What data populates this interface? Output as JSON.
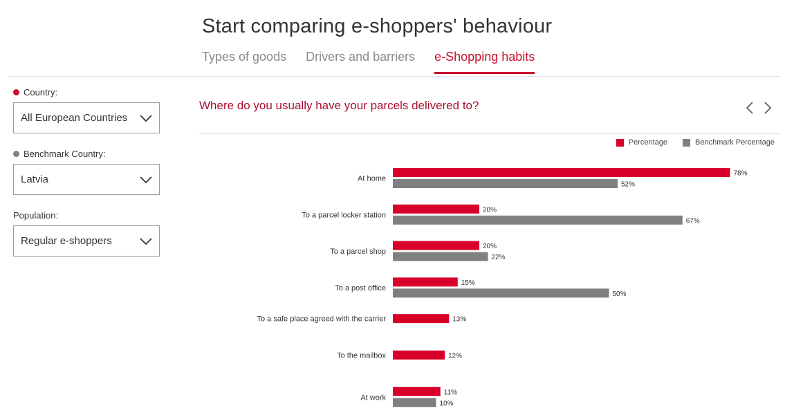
{
  "header": {
    "title": "Start comparing e-shoppers' behaviour",
    "tabs": [
      {
        "label": "Types of goods"
      },
      {
        "label": "Drivers and barriers"
      },
      {
        "label": "e-Shopping habits"
      }
    ]
  },
  "filters": {
    "country_label": "Country:",
    "country_value": "All European Countries",
    "benchmark_label": "Benchmark Country:",
    "benchmark_value": "Latvia",
    "population_label": "Population:",
    "population_value": "Regular e-shoppers"
  },
  "question": "Where do you usually have your parcels delivered to?",
  "colors": {
    "accent": "#c8102e",
    "percentage": "#d8002a",
    "benchmark": "#808080",
    "question": "#a8102e"
  },
  "icons": {
    "prev": "chevron-left-icon",
    "next": "chevron-right-icon",
    "dropdown": "chevron-down-icon"
  },
  "chart_data": {
    "type": "bar",
    "orientation": "horizontal",
    "legend_position": "top-right",
    "categories": [
      "At home",
      "To a parcel locker station",
      "To a parcel shop",
      "To a post office",
      "To a safe place agreed with the carrier",
      "To the mailbox",
      "At work"
    ],
    "series": [
      {
        "name": "Percentage",
        "values": [
          78,
          20,
          20,
          15,
          13,
          12,
          11
        ]
      },
      {
        "name": "Benchmark Percentage",
        "values": [
          52,
          67,
          22,
          50,
          null,
          null,
          10
        ]
      }
    ],
    "value_suffix": "%",
    "xlim": [
      0,
      100
    ],
    "grid": false
  }
}
